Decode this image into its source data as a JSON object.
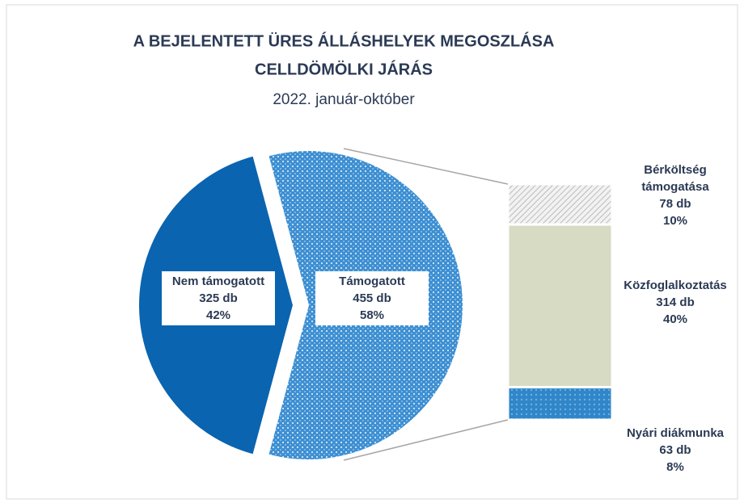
{
  "chart_data": {
    "type": "bar-of-pie",
    "title": [
      "A BEJELENTETT ÜRES ÁLLÁSHELYEK MEGOSZLÁSA",
      "CELLDÖMÖLKI JÁRÁS"
    ],
    "subtitle": "2022. január-október",
    "pie": {
      "categories": [
        "Nem támogatott",
        "Támogatott"
      ],
      "values": [
        325,
        455
      ],
      "value_labels": [
        "325 db",
        "455 db"
      ],
      "percent_labels": [
        "42%",
        "58%"
      ],
      "colors": [
        "#0a64b0",
        "#3d8fd2"
      ]
    },
    "bar": {
      "categories": [
        "Bérköltség támogatása",
        "Közfoglalkoztatás",
        "Nyári diákmunka"
      ],
      "values": [
        78,
        314,
        63
      ],
      "value_labels": [
        "78 db",
        "314 db",
        "63 db"
      ],
      "percent_labels": [
        "10%",
        "40%",
        "8%"
      ],
      "colors": [
        "#cfcfcf",
        "#d8dbc4",
        "#2f86c9"
      ]
    }
  }
}
